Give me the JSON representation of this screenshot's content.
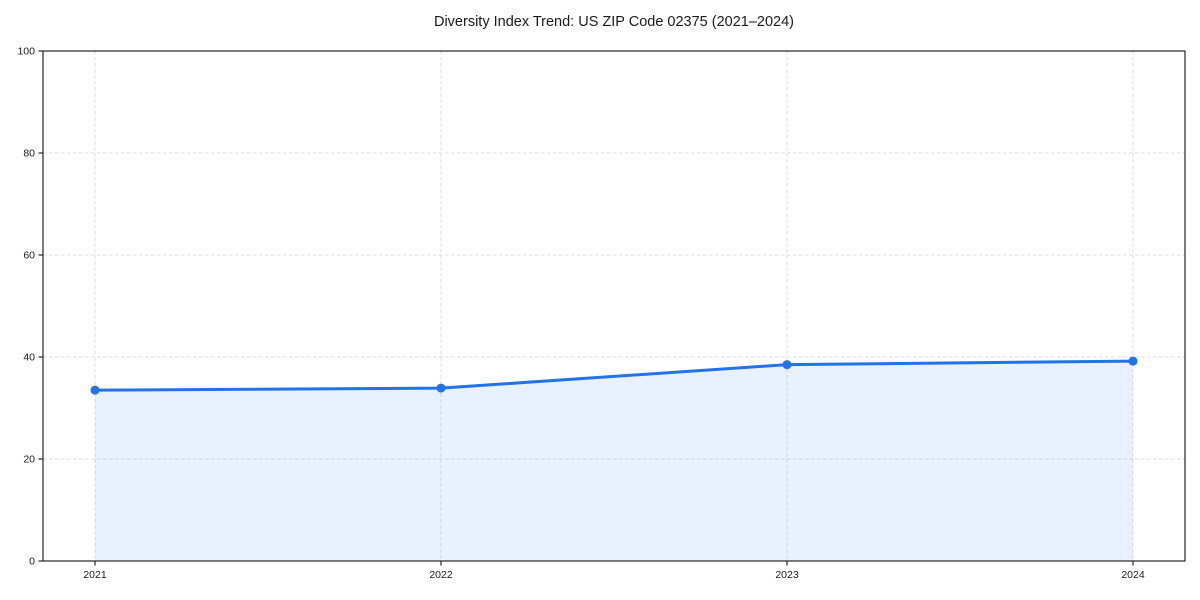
{
  "chart_data": {
    "type": "area",
    "title": "Diversity Index Trend: US ZIP Code 02375 (2021–2024)",
    "x": [
      2021,
      2022,
      2023,
      2024
    ],
    "series": [
      {
        "name": "Diversity Index",
        "values": [
          33.5,
          33.9,
          38.5,
          39.2
        ]
      }
    ],
    "ylim": [
      0,
      100
    ],
    "yticks": [
      0,
      20,
      40,
      60,
      80,
      100
    ],
    "grid": true,
    "legend": "none",
    "colors": {
      "line": "#2272e8",
      "marker": "#2272e8",
      "fill": "rgba(34,114,232,0.10)",
      "grid": "#dedede",
      "spine": "#262626",
      "text": "#1a1a1a",
      "background": "#ffffff"
    }
  }
}
